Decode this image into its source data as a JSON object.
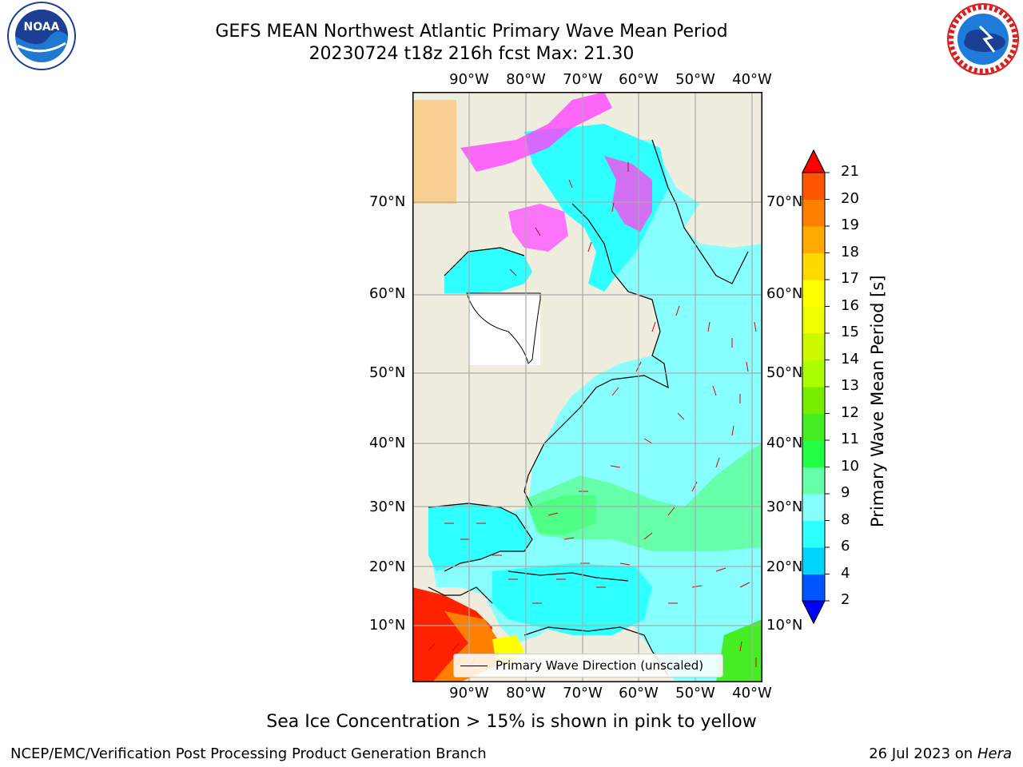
{
  "title": {
    "line1": "GEFS MEAN Northwest Atlantic Primary Wave Mean Period",
    "line2": "20230724 t18z 216h fcst   Max: 21.30"
  },
  "logos": {
    "left": "NOAA",
    "right": "National Weather Service"
  },
  "map": {
    "lon_labels": [
      "90°W",
      "80°W",
      "70°W",
      "60°W",
      "50°W",
      "40°W"
    ],
    "lat_labels": [
      "70°N",
      "60°N",
      "50°N",
      "40°N",
      "30°N",
      "20°N",
      "10°N"
    ],
    "land_color": "#efedde",
    "legend_label": "Primary Wave Direction (unscaled)"
  },
  "colorbar": {
    "label": "Primary Wave Mean Period [s]",
    "ticks": [
      "2",
      "4",
      "6",
      "8",
      "9",
      "10",
      "11",
      "12",
      "13",
      "14",
      "15",
      "16",
      "17",
      "18",
      "19",
      "20",
      "21"
    ],
    "colors": [
      "#0055ff",
      "#00d4ff",
      "#2effff",
      "#88ffff",
      "#66ffaa",
      "#22ff44",
      "#44ee22",
      "#77ee00",
      "#aaff00",
      "#ccf800",
      "#eeff00",
      "#ffff00",
      "#ffd800",
      "#ffaa00",
      "#ff8000",
      "#ff5500",
      "#ff2200"
    ],
    "under_color": "#0000ff",
    "over_color": "#ff0000"
  },
  "footer": {
    "note": "Sea Ice Concentration > 15% is shown in pink to yellow",
    "credit": "NCEP/EMC/Verification Post Processing Product Generation Branch",
    "date": "26 Jul 2023 on",
    "host": "Hera"
  }
}
